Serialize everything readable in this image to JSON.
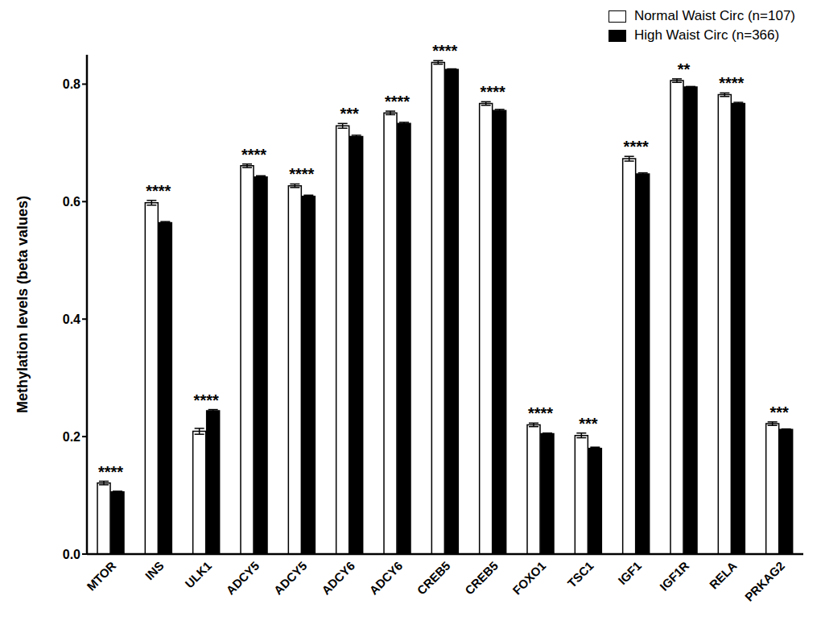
{
  "chart_data": {
    "type": "bar",
    "ylabel": "Methylation levels (beta values)",
    "categories": [
      "MTOR",
      "INS",
      "ULK1",
      "ADCY5",
      "ADCY5",
      "ADCY6",
      "ADCY6",
      "CREB5",
      "CREB5",
      "FOXO1",
      "TSC1",
      "IGF1",
      "IGF1R",
      "RELA",
      "PRKAG2"
    ],
    "series": [
      {
        "name": "Normal Waist Circ (n=107)",
        "color": "#ffffff",
        "values": [
          0.121,
          0.598,
          0.209,
          0.661,
          0.627,
          0.729,
          0.751,
          0.837,
          0.767,
          0.22,
          0.202,
          0.673,
          0.806,
          0.782,
          0.222
        ],
        "errors": [
          0.003,
          0.004,
          0.005,
          0.003,
          0.003,
          0.004,
          0.003,
          0.003,
          0.003,
          0.003,
          0.004,
          0.004,
          0.003,
          0.003,
          0.003
        ]
      },
      {
        "name": "High Waist Circ (n=366)",
        "color": "#000000",
        "values": [
          0.106,
          0.564,
          0.244,
          0.642,
          0.609,
          0.711,
          0.733,
          0.825,
          0.755,
          0.205,
          0.18,
          0.647,
          0.795,
          0.767,
          0.212
        ],
        "errors": [
          0.001,
          0.002,
          0.002,
          0.002,
          0.002,
          0.002,
          0.002,
          0.001,
          0.002,
          0.001,
          0.002,
          0.002,
          0.001,
          0.002,
          0.001
        ]
      }
    ],
    "annotations": [
      "****",
      "****",
      "****",
      "****",
      "****",
      "***",
      "****",
      "****",
      "****",
      "****",
      "***",
      "****",
      "**",
      "****",
      "***"
    ],
    "ylim": [
      0,
      0.85
    ],
    "yticks": [
      {
        "value": 0,
        "label": "0.0"
      },
      0.2,
      0.4,
      0.6,
      0.8
    ],
    "legend": "upper right"
  }
}
